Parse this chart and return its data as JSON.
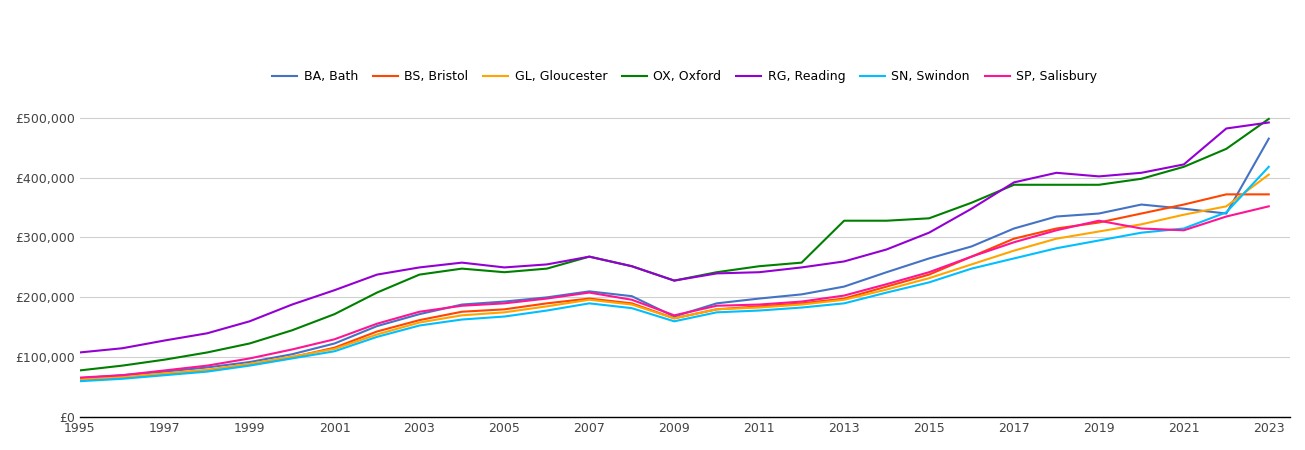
{
  "series": {
    "BA, Bath": {
      "color": "#4472C4",
      "values": [
        [
          1995,
          65000
        ],
        [
          1996,
          70000
        ],
        [
          1997,
          76000
        ],
        [
          1998,
          83000
        ],
        [
          1999,
          92000
        ],
        [
          2000,
          105000
        ],
        [
          2001,
          123000
        ],
        [
          2002,
          152000
        ],
        [
          2003,
          172000
        ],
        [
          2004,
          188000
        ],
        [
          2005,
          193000
        ],
        [
          2006,
          200000
        ],
        [
          2007,
          210000
        ],
        [
          2008,
          202000
        ],
        [
          2009,
          168000
        ],
        [
          2010,
          190000
        ],
        [
          2011,
          198000
        ],
        [
          2012,
          205000
        ],
        [
          2013,
          218000
        ],
        [
          2014,
          242000
        ],
        [
          2015,
          265000
        ],
        [
          2016,
          285000
        ],
        [
          2017,
          315000
        ],
        [
          2018,
          335000
        ],
        [
          2019,
          340000
        ],
        [
          2020,
          355000
        ],
        [
          2021,
          348000
        ],
        [
          2022,
          340000
        ],
        [
          2023,
          465000
        ]
      ]
    },
    "BS, Bristol": {
      "color": "#FF4500",
      "values": [
        [
          1995,
          62000
        ],
        [
          1996,
          66000
        ],
        [
          1997,
          72000
        ],
        [
          1998,
          78000
        ],
        [
          1999,
          88000
        ],
        [
          2000,
          100000
        ],
        [
          2001,
          116000
        ],
        [
          2002,
          143000
        ],
        [
          2003,
          162000
        ],
        [
          2004,
          176000
        ],
        [
          2005,
          180000
        ],
        [
          2006,
          190000
        ],
        [
          2007,
          198000
        ],
        [
          2008,
          190000
        ],
        [
          2009,
          165000
        ],
        [
          2010,
          180000
        ],
        [
          2011,
          185000
        ],
        [
          2012,
          190000
        ],
        [
          2013,
          198000
        ],
        [
          2014,
          218000
        ],
        [
          2015,
          238000
        ],
        [
          2016,
          268000
        ],
        [
          2017,
          298000
        ],
        [
          2018,
          315000
        ],
        [
          2019,
          325000
        ],
        [
          2020,
          340000
        ],
        [
          2021,
          355000
        ],
        [
          2022,
          372000
        ],
        [
          2023,
          372000
        ]
      ]
    },
    "GL, Gloucester": {
      "color": "#FFA500",
      "values": [
        [
          1995,
          63000
        ],
        [
          1996,
          67000
        ],
        [
          1997,
          73000
        ],
        [
          1998,
          79000
        ],
        [
          1999,
          89000
        ],
        [
          2000,
          101000
        ],
        [
          2001,
          114000
        ],
        [
          2002,
          138000
        ],
        [
          2003,
          158000
        ],
        [
          2004,
          170000
        ],
        [
          2005,
          175000
        ],
        [
          2006,
          185000
        ],
        [
          2007,
          196000
        ],
        [
          2008,
          188000
        ],
        [
          2009,
          165000
        ],
        [
          2010,
          180000
        ],
        [
          2011,
          183000
        ],
        [
          2012,
          188000
        ],
        [
          2013,
          196000
        ],
        [
          2014,
          213000
        ],
        [
          2015,
          232000
        ],
        [
          2016,
          255000
        ],
        [
          2017,
          278000
        ],
        [
          2018,
          298000
        ],
        [
          2019,
          310000
        ],
        [
          2020,
          322000
        ],
        [
          2021,
          338000
        ],
        [
          2022,
          352000
        ],
        [
          2023,
          405000
        ]
      ]
    },
    "OX, Oxford": {
      "color": "#008000",
      "values": [
        [
          1995,
          78000
        ],
        [
          1996,
          86000
        ],
        [
          1997,
          96000
        ],
        [
          1998,
          108000
        ],
        [
          1999,
          123000
        ],
        [
          2000,
          145000
        ],
        [
          2001,
          172000
        ],
        [
          2002,
          208000
        ],
        [
          2003,
          238000
        ],
        [
          2004,
          248000
        ],
        [
          2005,
          242000
        ],
        [
          2006,
          248000
        ],
        [
          2007,
          268000
        ],
        [
          2008,
          252000
        ],
        [
          2009,
          228000
        ],
        [
          2010,
          242000
        ],
        [
          2011,
          252000
        ],
        [
          2012,
          258000
        ],
        [
          2013,
          328000
        ],
        [
          2014,
          328000
        ],
        [
          2015,
          332000
        ],
        [
          2016,
          358000
        ],
        [
          2017,
          388000
        ],
        [
          2018,
          388000
        ],
        [
          2019,
          388000
        ],
        [
          2020,
          398000
        ],
        [
          2021,
          418000
        ],
        [
          2022,
          448000
        ],
        [
          2023,
          498000
        ]
      ]
    },
    "RG, Reading": {
      "color": "#9400D3",
      "values": [
        [
          1995,
          108000
        ],
        [
          1996,
          115000
        ],
        [
          1997,
          128000
        ],
        [
          1998,
          140000
        ],
        [
          1999,
          160000
        ],
        [
          2000,
          188000
        ],
        [
          2001,
          212000
        ],
        [
          2002,
          238000
        ],
        [
          2003,
          250000
        ],
        [
          2004,
          258000
        ],
        [
          2005,
          250000
        ],
        [
          2006,
          255000
        ],
        [
          2007,
          268000
        ],
        [
          2008,
          252000
        ],
        [
          2009,
          228000
        ],
        [
          2010,
          240000
        ],
        [
          2011,
          242000
        ],
        [
          2012,
          250000
        ],
        [
          2013,
          260000
        ],
        [
          2014,
          280000
        ],
        [
          2015,
          308000
        ],
        [
          2016,
          348000
        ],
        [
          2017,
          392000
        ],
        [
          2018,
          408000
        ],
        [
          2019,
          402000
        ],
        [
          2020,
          408000
        ],
        [
          2021,
          422000
        ],
        [
          2022,
          482000
        ],
        [
          2023,
          492000
        ]
      ]
    },
    "SN, Swindon": {
      "color": "#00BFFF",
      "values": [
        [
          1995,
          60000
        ],
        [
          1996,
          64000
        ],
        [
          1997,
          70000
        ],
        [
          1998,
          76000
        ],
        [
          1999,
          86000
        ],
        [
          2000,
          98000
        ],
        [
          2001,
          110000
        ],
        [
          2002,
          134000
        ],
        [
          2003,
          153000
        ],
        [
          2004,
          163000
        ],
        [
          2005,
          168000
        ],
        [
          2006,
          178000
        ],
        [
          2007,
          190000
        ],
        [
          2008,
          182000
        ],
        [
          2009,
          160000
        ],
        [
          2010,
          175000
        ],
        [
          2011,
          178000
        ],
        [
          2012,
          183000
        ],
        [
          2013,
          190000
        ],
        [
          2014,
          208000
        ],
        [
          2015,
          225000
        ],
        [
          2016,
          248000
        ],
        [
          2017,
          265000
        ],
        [
          2018,
          282000
        ],
        [
          2019,
          295000
        ],
        [
          2020,
          308000
        ],
        [
          2021,
          315000
        ],
        [
          2022,
          342000
        ],
        [
          2023,
          418000
        ]
      ]
    },
    "SP, Salisbury": {
      "color": "#FF1493",
      "values": [
        [
          1995,
          66000
        ],
        [
          1996,
          70000
        ],
        [
          1997,
          78000
        ],
        [
          1998,
          86000
        ],
        [
          1999,
          98000
        ],
        [
          2000,
          113000
        ],
        [
          2001,
          130000
        ],
        [
          2002,
          156000
        ],
        [
          2003,
          176000
        ],
        [
          2004,
          186000
        ],
        [
          2005,
          190000
        ],
        [
          2006,
          198000
        ],
        [
          2007,
          208000
        ],
        [
          2008,
          196000
        ],
        [
          2009,
          170000
        ],
        [
          2010,
          186000
        ],
        [
          2011,
          188000
        ],
        [
          2012,
          193000
        ],
        [
          2013,
          203000
        ],
        [
          2014,
          222000
        ],
        [
          2015,
          242000
        ],
        [
          2016,
          268000
        ],
        [
          2017,
          292000
        ],
        [
          2018,
          312000
        ],
        [
          2019,
          328000
        ],
        [
          2020,
          315000
        ],
        [
          2021,
          312000
        ],
        [
          2022,
          335000
        ],
        [
          2023,
          352000
        ]
      ]
    }
  },
  "xlim": [
    1995,
    2023.5
  ],
  "ylim": [
    0,
    520000
  ],
  "yticks": [
    0,
    100000,
    200000,
    300000,
    400000,
    500000
  ],
  "xticks": [
    1995,
    1997,
    1999,
    2001,
    2003,
    2005,
    2007,
    2009,
    2011,
    2013,
    2015,
    2017,
    2019,
    2021,
    2023
  ],
  "background_color": "#ffffff",
  "grid_color": "#d0d0d0",
  "legend_order": [
    "BA, Bath",
    "BS, Bristol",
    "GL, Gloucester",
    "OX, Oxford",
    "RG, Reading",
    "SN, Swindon",
    "SP, Salisbury"
  ]
}
